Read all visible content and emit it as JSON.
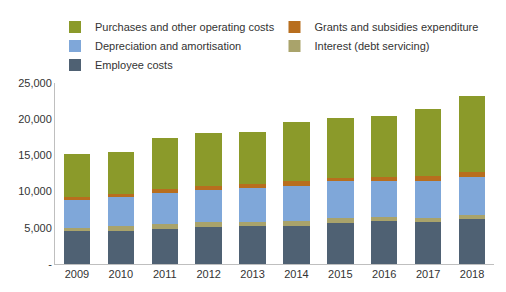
{
  "chart_data": {
    "type": "bar",
    "stacked": true,
    "grid": false,
    "legend": "top",
    "categories": [
      "2009",
      "2010",
      "2011",
      "2012",
      "2013",
      "2014",
      "2015",
      "2016",
      "2017",
      "2018"
    ],
    "series": [
      {
        "name": "Employee costs",
        "color": "#4f6173",
        "values": [
          4500,
          4600,
          4800,
          5100,
          5200,
          5300,
          5700,
          5900,
          5800,
          6200
        ]
      },
      {
        "name": "Interest (debt servicing)",
        "color": "#a9a36b",
        "values": [
          500,
          700,
          700,
          700,
          600,
          600,
          600,
          600,
          500,
          600
        ]
      },
      {
        "name": "Depreciation and amortisation",
        "color": "#7fa7d9",
        "values": [
          3800,
          3900,
          4300,
          4400,
          4700,
          4900,
          5100,
          5000,
          5100,
          5200
        ]
      },
      {
        "name": "Grants and subsidies expenditure",
        "color": "#b86e1e",
        "values": [
          400,
          500,
          500,
          600,
          600,
          600,
          500,
          500,
          700,
          700
        ]
      },
      {
        "name": "Purchases and other operating costs",
        "color": "#8b9a2a",
        "values": [
          6000,
          5800,
          7100,
          7300,
          7200,
          8200,
          8200,
          8400,
          9300,
          10500
        ]
      }
    ],
    "ylim": [
      0,
      25000
    ],
    "yticks": [
      {
        "value": 0,
        "label": "-"
      },
      {
        "value": 5000,
        "label": "5,000"
      },
      {
        "value": 10000,
        "label": "10,000"
      },
      {
        "value": 15000,
        "label": "15,000"
      },
      {
        "value": 20000,
        "label": "20,000"
      },
      {
        "value": 25000,
        "label": "25,000"
      }
    ]
  }
}
